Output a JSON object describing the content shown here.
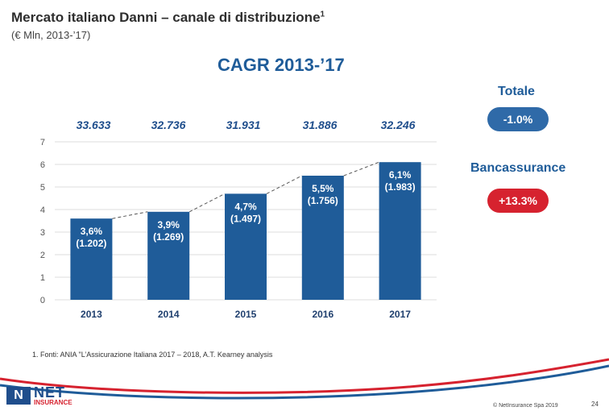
{
  "header": {
    "title": "Mercato italiano Danni – canale di distribuzione",
    "title_sup": "1",
    "subtitle": "(€ Mln, 2013-’17)"
  },
  "chart_data": {
    "type": "bar",
    "title": "CAGR 2013-’17",
    "categories": [
      "2013",
      "2014",
      "2015",
      "2016",
      "2017"
    ],
    "values": [
      3.6,
      3.9,
      4.7,
      5.5,
      6.1
    ],
    "value_labels": [
      "3,6%",
      "3,9%",
      "4,7%",
      "5,5%",
      "6,1%"
    ],
    "sub_labels": [
      "(1.202)",
      "(1.269)",
      "(1.497)",
      "(1.756)",
      "(1.983)"
    ],
    "totals": [
      "33.633",
      "32.736",
      "31.931",
      "31.886",
      "32.246"
    ],
    "yticks": [
      "0",
      "1",
      "2",
      "3",
      "4",
      "5",
      "6",
      "7"
    ],
    "ylim": [
      0,
      7
    ],
    "grid": true,
    "bar_color": "#1f5c99"
  },
  "sidebar": {
    "totale_label": "Totale",
    "totale_value": "-1.0%",
    "totale_color": "#2f6aa8",
    "banc_label": "Bancassurance",
    "banc_value": "+13.3%",
    "banc_color": "#d6222f"
  },
  "footnote": "1.  Fonti: ANIA \"L’Assicurazione Italiana 2017 – 2018, A.T. Kearney analysis",
  "footer": {
    "logo_net": "NET",
    "logo_insurance": "INSURANCE",
    "copyright": "© NetInsurance Spa 2019",
    "page_number": "24"
  }
}
